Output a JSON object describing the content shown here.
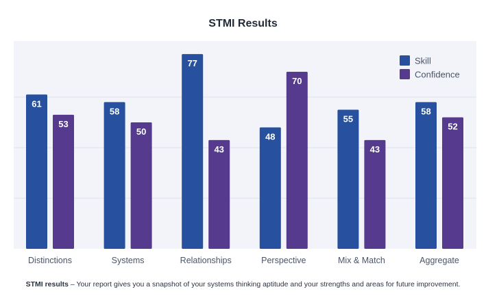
{
  "chart_data": {
    "type": "bar",
    "title": "STMI Results",
    "categories": [
      "Distinctions",
      "Systems",
      "Relationships",
      "Perspective",
      "Mix & Match",
      "Aggregate"
    ],
    "series": [
      {
        "name": "Skill",
        "values": [
          61,
          58,
          77,
          48,
          55,
          58
        ]
      },
      {
        "name": "Confidence",
        "values": [
          53,
          50,
          43,
          70,
          43,
          52
        ]
      }
    ],
    "ylim": [
      0,
      80
    ],
    "grid": true,
    "legend": "top-right",
    "xlabel": "",
    "ylabel": ""
  },
  "colors": {
    "skill": "#27509e",
    "confidence": "#553a8e",
    "plot_bg": "#f2f4fa",
    "gridline": "#dde2ec",
    "tick_label": "#4a5566"
  },
  "caption": {
    "bold": "STMI results",
    "text": " – Your report gives you a snapshot of your systems thinking aptitude and your strengths and areas for future improvement."
  }
}
